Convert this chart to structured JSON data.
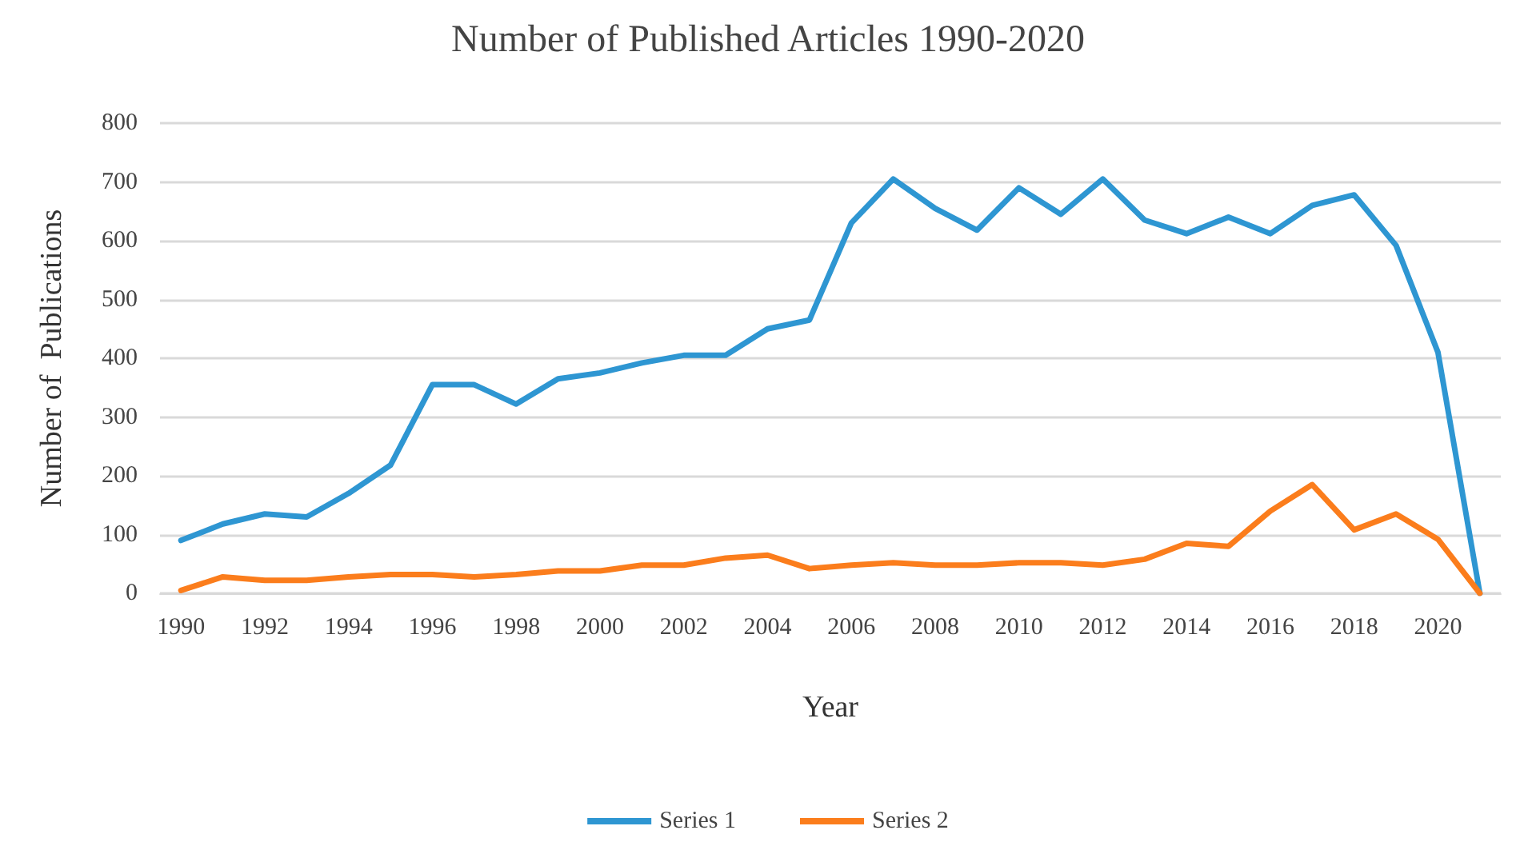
{
  "chart_data": {
    "type": "line",
    "title": "Number of Published Articles 1990-2020",
    "xlabel": "Year",
    "ylabel": "Number of  Publications",
    "categories": [
      "1990",
      null,
      "1992",
      null,
      "1994",
      null,
      "1996",
      null,
      "1998",
      null,
      "2000",
      null,
      "2002",
      null,
      "2004",
      null,
      "2006",
      null,
      "2008",
      null,
      "2010",
      null,
      "2012",
      null,
      "2014",
      null,
      "2016",
      null,
      "2018",
      null,
      "2020",
      null
    ],
    "series": [
      {
        "name": "Series 1",
        "color": "#2e96d2",
        "values": [
          90,
          118,
          135,
          130,
          170,
          218,
          355,
          355,
          322,
          365,
          375,
          392,
          405,
          405,
          450,
          465,
          630,
          705,
          655,
          618,
          690,
          645,
          705,
          635,
          612,
          640,
          612,
          660,
          678,
          592,
          410,
          0
        ]
      },
      {
        "name": "Series 2",
        "color": "#fb7d1c",
        "values": [
          5,
          28,
          22,
          22,
          28,
          32,
          32,
          28,
          32,
          38,
          38,
          48,
          48,
          60,
          65,
          42,
          48,
          52,
          48,
          48,
          52,
          52,
          48,
          58,
          85,
          80,
          140,
          185,
          108,
          135,
          92,
          0
        ]
      }
    ],
    "ylim": [
      0,
      800
    ],
    "yticks": [
      0,
      100,
      200,
      300,
      400,
      500,
      600,
      700,
      800
    ],
    "grid": "y",
    "legend": "bottom",
    "marker": "none",
    "line_style": "solid"
  }
}
